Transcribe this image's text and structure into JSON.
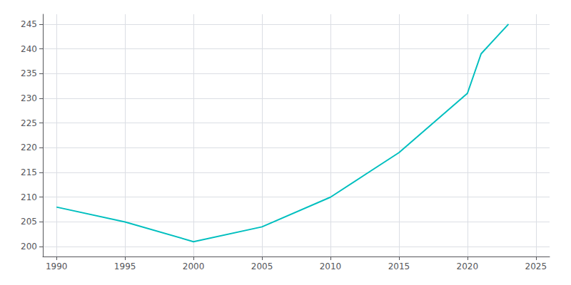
{
  "chart_data": {
    "type": "line",
    "x": [
      1990,
      1995,
      2000,
      2005,
      2010,
      2015,
      2020,
      2021,
      2022,
      2023
    ],
    "values": [
      208,
      205,
      201,
      204,
      210,
      219,
      231,
      239,
      242,
      245
    ],
    "color": "#00BFBF",
    "xlim": [
      1989,
      2026
    ],
    "ylim": [
      198,
      247
    ],
    "xticks": [
      1990,
      1995,
      2000,
      2005,
      2010,
      2015,
      2020,
      2025
    ],
    "yticks": [
      200,
      205,
      210,
      215,
      220,
      225,
      230,
      235,
      240,
      245
    ],
    "grid": true
  }
}
